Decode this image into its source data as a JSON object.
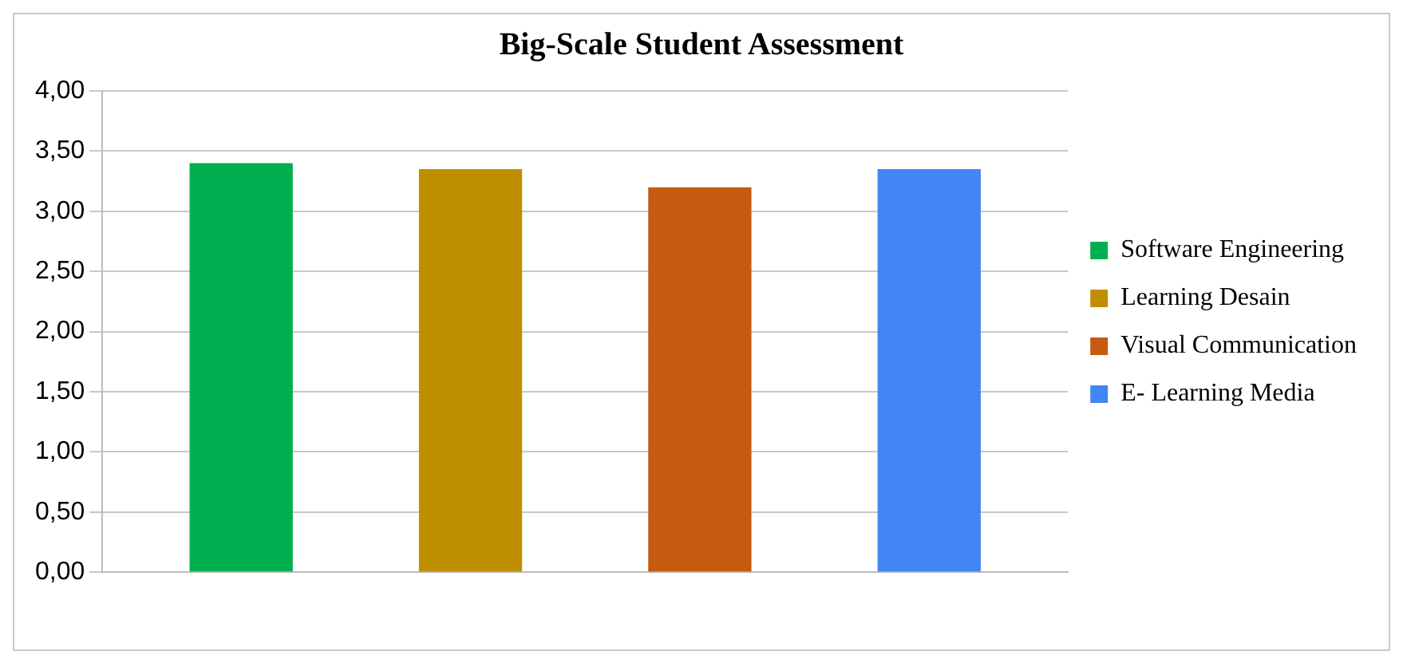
{
  "chart_data": {
    "type": "bar",
    "title": "Big-Scale Student Assessment",
    "categories": [
      null
    ],
    "series": [
      {
        "name": "Software Engineering",
        "color": "#00b050",
        "values": [
          3.4
        ]
      },
      {
        "name": "Learning Desain",
        "color": "#bf8f00",
        "values": [
          3.35
        ]
      },
      {
        "name": "Visual Communication",
        "color": "#c55a11",
        "values": [
          3.2
        ]
      },
      {
        "name": "E- Learning Media",
        "color": "#4285f4",
        "values": [
          3.35
        ]
      }
    ],
    "ylim": [
      0,
      4
    ],
    "yticks": [
      {
        "value": 0,
        "label": "0,00"
      },
      {
        "value": 0.5,
        "label": "0,50"
      },
      {
        "value": 1,
        "label": "1,00"
      },
      {
        "value": 1.5,
        "label": "1,50"
      },
      {
        "value": 2,
        "label": "2,00"
      },
      {
        "value": 2.5,
        "label": "2,50"
      },
      {
        "value": 3,
        "label": "3,00"
      },
      {
        "value": 3.5,
        "label": "3,50"
      },
      {
        "value": 4,
        "label": "4,00"
      }
    ],
    "grid": "y",
    "legend": "right"
  }
}
